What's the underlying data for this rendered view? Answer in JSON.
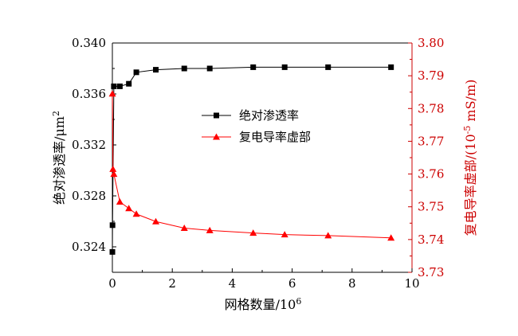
{
  "chart_data": {
    "type": "line",
    "xlabel": "网格数量/10^6",
    "ylabel_left": "绝对渗透率/μm^2",
    "ylabel_right": "复电导率虚部/(10^-5 mS/m)",
    "xlim": [
      0,
      10
    ],
    "ylim_left": [
      0.322,
      0.34
    ],
    "ylim_right": [
      3.73,
      3.8
    ],
    "xticks": [
      "0",
      "2",
      "4",
      "6",
      "8",
      "10"
    ],
    "yticks_left": [
      "0.324",
      "0.328",
      "0.332",
      "0.336",
      "0.340"
    ],
    "yticks_right": [
      "3.73",
      "3.74",
      "3.75",
      "3.76",
      "3.77",
      "3.78",
      "3.79",
      "3.80"
    ],
    "legend_position": "center",
    "series": [
      {
        "name": "绝对渗透率",
        "axis": "left",
        "color": "#000000",
        "marker": "square",
        "x": [
          0.001,
          0.005,
          0.05,
          0.25,
          0.55,
          0.8,
          1.45,
          2.4,
          3.25,
          4.7,
          5.75,
          7.2,
          9.3
        ],
        "y": [
          0.3236,
          0.3257,
          0.3366,
          0.3366,
          0.3368,
          0.3377,
          0.3379,
          0.338,
          0.338,
          0.3381,
          0.3381,
          0.3381,
          0.3381
        ]
      },
      {
        "name": "复电导率虚部",
        "axis": "right",
        "color": "#ff0000",
        "marker": "triangle",
        "x": [
          0.001,
          0.02,
          0.05,
          0.25,
          0.55,
          0.8,
          1.45,
          2.4,
          3.25,
          4.7,
          5.75,
          7.2,
          9.3
        ],
        "y": [
          3.7845,
          3.7615,
          3.76,
          3.7515,
          3.7495,
          3.7478,
          3.7455,
          3.7435,
          3.7428,
          3.742,
          3.7415,
          3.7412,
          3.7405
        ]
      }
    ]
  }
}
